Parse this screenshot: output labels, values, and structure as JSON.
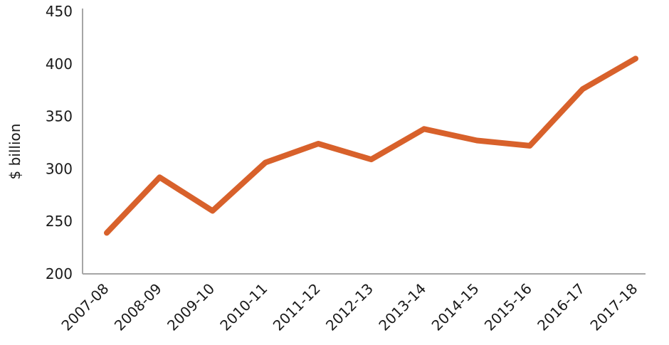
{
  "chart_data": {
    "type": "line",
    "title": "",
    "xlabel": "",
    "ylabel": "$ billion",
    "categories": [
      "2007-08",
      "2008-09",
      "2009-10",
      "2010-11",
      "2011-12",
      "2012-13",
      "2013-14",
      "2014-15",
      "2015-16",
      "2016-17",
      "2017-18"
    ],
    "series": [
      {
        "values": [
          239,
          292,
          260,
          306,
          324,
          309,
          338,
          327,
          322,
          376,
          405
        ],
        "color": "#d8612b"
      }
    ],
    "ylim": [
      200,
      450
    ],
    "yticks": [
      200,
      250,
      300,
      350,
      400,
      450
    ],
    "grid": false,
    "legend": "none",
    "axis_color": "#a6a6a6"
  }
}
